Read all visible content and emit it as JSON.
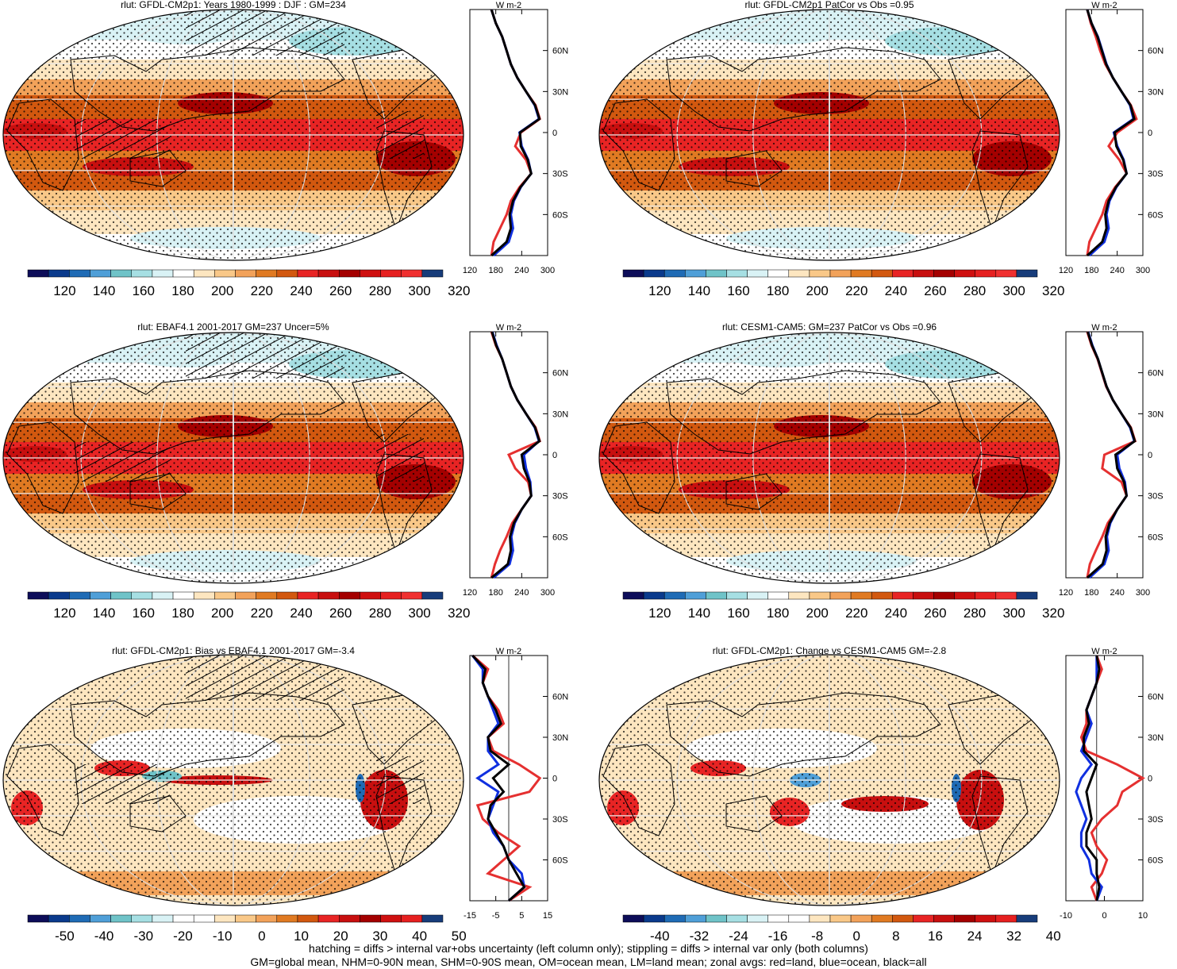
{
  "variable": "rlut",
  "colors": {
    "abs_scale": [
      "#0d0d59",
      "#0a3a8c",
      "#1f6bb5",
      "#4f9fd8",
      "#6fc3c8",
      "#a6dfe3",
      "#d9f2f5",
      "#ffffff",
      "#fde6c0",
      "#f9c888",
      "#f2a25a",
      "#e07a22",
      "#d2580f",
      "#e82424",
      "#c80f0f",
      "#a40000",
      "#cf1010",
      "#e62020",
      "#f03030",
      "#173c7a"
    ],
    "diff_scale": [
      "#0d0d59",
      "#0a3a8c",
      "#1f6bb5",
      "#4f9fd8",
      "#6fc3c8",
      "#a6dfe3",
      "#d9f2f5",
      "#ffffff",
      "#ffffff",
      "#fde6c0",
      "#f9c888",
      "#f2a25a",
      "#e07a22",
      "#d2580f",
      "#e82424",
      "#c80f0f",
      "#a40000",
      "#cf1010",
      "#e62020",
      "#173c7a"
    ],
    "land": "#e53030",
    "ocean": "#1030e0",
    "all": "#000000"
  },
  "panels": [
    {
      "title": "rlut: GFDL-CM2p1: Years 1980-1999 : DJF : GM=234",
      "kind": "abs",
      "hatch": true
    },
    {
      "title": "rlut: GFDL-CM2p1 PatCor vs Obs =0.95",
      "kind": "abs",
      "hatch": false
    },
    {
      "title": "rlut: EBAF4.1 2001-2017 GM=237 Uncer=5%",
      "kind": "abs",
      "hatch": true
    },
    {
      "title": "rlut: CESM1-CAM5: GM=237 PatCor vs Obs =0.96",
      "kind": "abs",
      "hatch": false
    },
    {
      "title": "rlut: GFDL-CM2p1: Bias vs EBAF4.1 2001-2017 GM=-3.4",
      "kind": "bias",
      "hatch": true
    },
    {
      "title": "rlut: GFDL-CM2p1: Change vs CESM1-CAM5 GM=-2.8",
      "kind": "change",
      "hatch": false
    }
  ],
  "colorbars": {
    "abs": [
      "120",
      "140",
      "160",
      "180",
      "200",
      "220",
      "240",
      "260",
      "280",
      "300",
      "320"
    ],
    "bias": [
      "-50",
      "-40",
      "-30",
      "-20",
      "-10",
      "0",
      "10",
      "20",
      "30",
      "40",
      "50"
    ],
    "change": [
      "-40",
      "-32",
      "-24",
      "-16",
      "-8",
      "0",
      "8",
      "16",
      "24",
      "32",
      "40"
    ]
  },
  "zonal_axis": {
    "unit": "W m-2",
    "lat_ticks": [
      "60N",
      "30N",
      "0",
      "30S",
      "60S"
    ],
    "x_ticks_abs": [
      "120",
      "180",
      "240",
      "300"
    ],
    "x_ticks_bias": [
      "-15",
      "-5",
      "5",
      "15"
    ],
    "x_ticks_change": [
      "-10",
      "0",
      "10"
    ]
  },
  "chart_data": [
    {
      "type": "line",
      "title": "rlut: GFDL-CM2p1: Years 1980-1999 : DJF : GM=234",
      "xlabel": "W m-2",
      "xlim": [
        120,
        300
      ],
      "ylim": [
        -90,
        90
      ],
      "lat": [
        -90,
        -80,
        -70,
        -60,
        -50,
        -40,
        -30,
        -20,
        -10,
        0,
        10,
        20,
        30,
        40,
        50,
        60,
        70,
        80,
        90
      ],
      "series": [
        {
          "name": "land",
          "values": [
            170,
            175,
            190,
            205,
            215,
            235,
            262,
            250,
            225,
            238,
            282,
            272,
            250,
            230,
            215,
            205,
            195,
            180,
            170
          ]
        },
        {
          "name": "ocean",
          "values": [
            175,
            210,
            220,
            215,
            222,
            238,
            262,
            255,
            240,
            235,
            280,
            270,
            250,
            230,
            215,
            205,
            195,
            180,
            170
          ]
        },
        {
          "name": "all",
          "values": [
            170,
            205,
            215,
            212,
            220,
            237,
            262,
            254,
            238,
            236,
            281,
            271,
            250,
            230,
            215,
            205,
            195,
            180,
            170
          ]
        }
      ]
    },
    {
      "type": "line",
      "title": "rlut: GFDL-CM2p1 PatCor vs Obs =0.95",
      "xlabel": "W m-2",
      "xlim": [
        120,
        300
      ],
      "ylim": [
        -90,
        90
      ],
      "lat": [
        -90,
        -80,
        -70,
        -60,
        -50,
        -40,
        -30,
        -20,
        -10,
        0,
        10,
        20,
        30,
        40,
        50,
        60,
        70,
        80,
        90
      ],
      "series": [
        {
          "name": "land",
          "values": [
            170,
            175,
            190,
            205,
            215,
            235,
            262,
            245,
            220,
            240,
            285,
            272,
            250,
            230,
            212,
            200,
            190,
            178,
            170
          ]
        },
        {
          "name": "ocean",
          "values": [
            175,
            210,
            220,
            215,
            222,
            238,
            262,
            255,
            240,
            232,
            278,
            270,
            250,
            230,
            215,
            205,
            195,
            180,
            170
          ]
        },
        {
          "name": "all",
          "values": [
            170,
            205,
            215,
            212,
            220,
            237,
            262,
            254,
            238,
            234,
            280,
            271,
            250,
            230,
            214,
            204,
            194,
            180,
            170
          ]
        }
      ]
    },
    {
      "type": "line",
      "title": "rlut: EBAF4.1 2001-2017 GM=237 Uncer=5%",
      "xlabel": "W m-2",
      "xlim": [
        120,
        300
      ],
      "ylim": [
        -90,
        90
      ],
      "lat": [
        -90,
        -80,
        -70,
        -60,
        -50,
        -40,
        -30,
        -20,
        -10,
        0,
        10,
        20,
        30,
        40,
        50,
        60,
        70,
        80,
        90
      ],
      "series": [
        {
          "name": "land",
          "values": [
            170,
            178,
            190,
            205,
            218,
            240,
            262,
            255,
            225,
            210,
            282,
            272,
            250,
            230,
            215,
            205,
            195,
            180,
            170
          ]
        },
        {
          "name": "ocean",
          "values": [
            175,
            212,
            220,
            216,
            224,
            240,
            262,
            260,
            250,
            245,
            280,
            270,
            250,
            230,
            215,
            205,
            195,
            182,
            172
          ]
        },
        {
          "name": "all",
          "values": [
            170,
            208,
            215,
            213,
            222,
            240,
            262,
            258,
            245,
            240,
            281,
            271,
            250,
            230,
            215,
            205,
            195,
            181,
            171
          ]
        }
      ]
    },
    {
      "type": "line",
      "title": "rlut: CESM1-CAM5: GM=237 PatCor vs Obs =0.96",
      "xlabel": "W m-2",
      "xlim": [
        120,
        300
      ],
      "ylim": [
        -90,
        90
      ],
      "lat": [
        -90,
        -80,
        -70,
        -60,
        -50,
        -40,
        -30,
        -20,
        -10,
        0,
        10,
        20,
        30,
        40,
        50,
        60,
        70,
        80,
        90
      ],
      "series": [
        {
          "name": "land",
          "values": [
            170,
            176,
            190,
            205,
            218,
            240,
            262,
            250,
            205,
            210,
            282,
            272,
            250,
            230,
            214,
            204,
            194,
            180,
            170
          ]
        },
        {
          "name": "ocean",
          "values": [
            175,
            210,
            220,
            216,
            224,
            240,
            262,
            258,
            245,
            240,
            280,
            270,
            250,
            230,
            215,
            205,
            195,
            182,
            172
          ]
        },
        {
          "name": "all",
          "values": [
            170,
            206,
            215,
            213,
            222,
            240,
            262,
            256,
            240,
            236,
            281,
            271,
            250,
            230,
            215,
            205,
            195,
            181,
            171
          ]
        }
      ]
    },
    {
      "type": "line",
      "title": "rlut: GFDL-CM2p1: Bias vs EBAF4.1 2001-2017 GM=-3.4",
      "xlabel": "W m-2",
      "xlim": [
        -15,
        15
      ],
      "ylim": [
        -90,
        90
      ],
      "lat": [
        -90,
        -80,
        -70,
        -60,
        -50,
        -40,
        -30,
        -20,
        -10,
        0,
        10,
        20,
        30,
        40,
        50,
        60,
        70,
        80,
        90
      ],
      "series": [
        {
          "name": "land",
          "values": [
            0,
            8,
            -8,
            -2,
            4,
            -4,
            -10,
            -12,
            8,
            12,
            4,
            -6,
            -8,
            -2,
            -4,
            -8,
            -10,
            -8,
            -14
          ]
        },
        {
          "name": "ocean",
          "values": [
            0,
            6,
            5,
            0,
            -2,
            -6,
            -8,
            -6,
            -4,
            -12,
            -4,
            -8,
            -8,
            -4,
            -6,
            -8,
            -10,
            -10,
            -14
          ]
        },
        {
          "name": "all",
          "values": [
            0,
            6,
            3,
            0,
            -2,
            -5,
            -8,
            -7,
            -2,
            -6,
            0,
            -7,
            -8,
            -3,
            -5,
            -8,
            -10,
            -9,
            -14
          ]
        }
      ]
    },
    {
      "type": "line",
      "title": "rlut: GFDL-CM2p1: Change vs CESM1-CAM5 GM=-2.8",
      "xlabel": "W m-2",
      "xlim": [
        -12,
        18
      ],
      "ylim": [
        -90,
        90
      ],
      "lat": [
        -90,
        -80,
        -70,
        -60,
        -50,
        -40,
        -30,
        -20,
        -10,
        0,
        10,
        20,
        30,
        40,
        50,
        60,
        70,
        80,
        90
      ],
      "series": [
        {
          "name": "land",
          "values": [
            0,
            -2,
            2,
            4,
            0,
            -2,
            2,
            8,
            10,
            18,
            8,
            -4,
            -6,
            -4,
            -4,
            -2,
            0,
            2,
            0
          ]
        },
        {
          "name": "ocean",
          "values": [
            0,
            2,
            -2,
            -3,
            -6,
            -6,
            -4,
            -6,
            -8,
            -6,
            -2,
            -6,
            -4,
            -2,
            -4,
            -2,
            0,
            0,
            0
          ]
        },
        {
          "name": "all",
          "values": [
            0,
            1,
            0,
            0,
            -4,
            -4,
            -2,
            -3,
            -4,
            -2,
            0,
            -5,
            -5,
            -3,
            -4,
            -2,
            0,
            1,
            0
          ]
        }
      ]
    }
  ],
  "footer": {
    "line1": "hatching = diffs > internal var+obs uncertainty (left column only); stippling = diffs > internal var only (both columns)",
    "line2": "GM=global mean, NHM=0-90N mean, SHM=0-90S mean, OM=ocean mean, LM=land mean; zonal avgs: red=land, blue=ocean, black=all"
  }
}
